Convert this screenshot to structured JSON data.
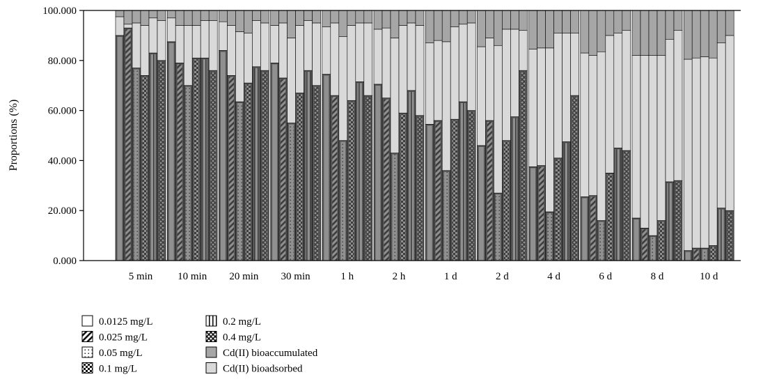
{
  "chart_data": {
    "type": "bar",
    "subtype": "stacked-100-grouped",
    "ylabel": "Proportions (%)",
    "xlabel": "",
    "ylim": [
      0,
      100
    ],
    "yticks": [
      "0.000",
      "20.000",
      "40.000",
      "60.000",
      "80.000",
      "100.000"
    ],
    "grid": false,
    "legend_position": "bottom-left",
    "categories": [
      "5 min",
      "10 min",
      "20 min",
      "30 min",
      "1 h",
      "2 h",
      "1 d",
      "2 d",
      "4 d",
      "6 d",
      "8 d",
      "10 d"
    ],
    "concentrations": [
      {
        "label": "0.0125 mg/L",
        "pattern": "blank"
      },
      {
        "label": "0.025 mg/L",
        "pattern": "diagonal"
      },
      {
        "label": "0.05 mg/L",
        "pattern": "dotted"
      },
      {
        "label": "0.1 mg/L",
        "pattern": "checker"
      },
      {
        "label": "0.2 mg/L",
        "pattern": "vertical"
      },
      {
        "label": "0.4 mg/L",
        "pattern": "cross"
      }
    ],
    "components": [
      {
        "label": "Cd(II) bioaccumulated",
        "color": "#a6a6a6"
      },
      {
        "label": "Cd(II) bioadsorbed",
        "color": "#d9d9d9"
      }
    ],
    "remaining_color": "#555555",
    "remaining_percent": [
      [
        90.0,
        93.0,
        77.0,
        74.0,
        83.0,
        80.0
      ],
      [
        87.5,
        79.0,
        70.0,
        81.0,
        81.0,
        76.0
      ],
      [
        84.0,
        74.0,
        63.5,
        71.0,
        77.5,
        76.0
      ],
      [
        79.0,
        73.0,
        55.0,
        67.0,
        76.0,
        70.0
      ],
      [
        74.5,
        66.0,
        48.0,
        64.0,
        71.5,
        66.0
      ],
      [
        70.5,
        65.0,
        43.0,
        59.0,
        68.0,
        58.0
      ],
      [
        54.5,
        56.0,
        36.0,
        56.5,
        63.5,
        60.0
      ],
      [
        46.0,
        56.0,
        27.0,
        48.0,
        57.5,
        76.0
      ],
      [
        37.5,
        38.0,
        19.5,
        41.0,
        47.5,
        66.0
      ],
      [
        25.5,
        26.0,
        16.0,
        35.0,
        45.0,
        44.0
      ],
      [
        17.0,
        13.0,
        10.0,
        16.0,
        31.5,
        32.0
      ],
      [
        4.0,
        5.0,
        5.0,
        6.0,
        21.0,
        20.0
      ]
    ],
    "bioadsorbed_percent": [
      [
        7.5,
        1.5,
        18.0,
        20.0,
        14.0,
        16.0
      ],
      [
        9.5,
        15.0,
        24.0,
        13.0,
        15.0,
        20.0
      ],
      [
        11.5,
        20.0,
        28.0,
        20.0,
        18.5,
        19.0
      ],
      [
        15.0,
        22.0,
        34.0,
        27.0,
        20.0,
        25.0
      ],
      [
        19.0,
        29.0,
        41.5,
        30.0,
        23.5,
        29.0
      ],
      [
        22.0,
        28.0,
        46.0,
        35.0,
        27.0,
        36.0
      ],
      [
        32.5,
        32.0,
        51.5,
        37.0,
        31.0,
        35.0
      ],
      [
        39.5,
        33.0,
        59.0,
        44.5,
        35.0,
        16.0
      ],
      [
        47.0,
        47.0,
        65.5,
        50.0,
        43.5,
        25.0
      ],
      [
        57.5,
        56.0,
        67.5,
        55.0,
        46.0,
        48.0
      ],
      [
        65.0,
        69.0,
        72.0,
        66.0,
        57.0,
        60.0
      ],
      [
        76.5,
        76.0,
        76.5,
        75.0,
        66.0,
        70.0
      ]
    ]
  }
}
